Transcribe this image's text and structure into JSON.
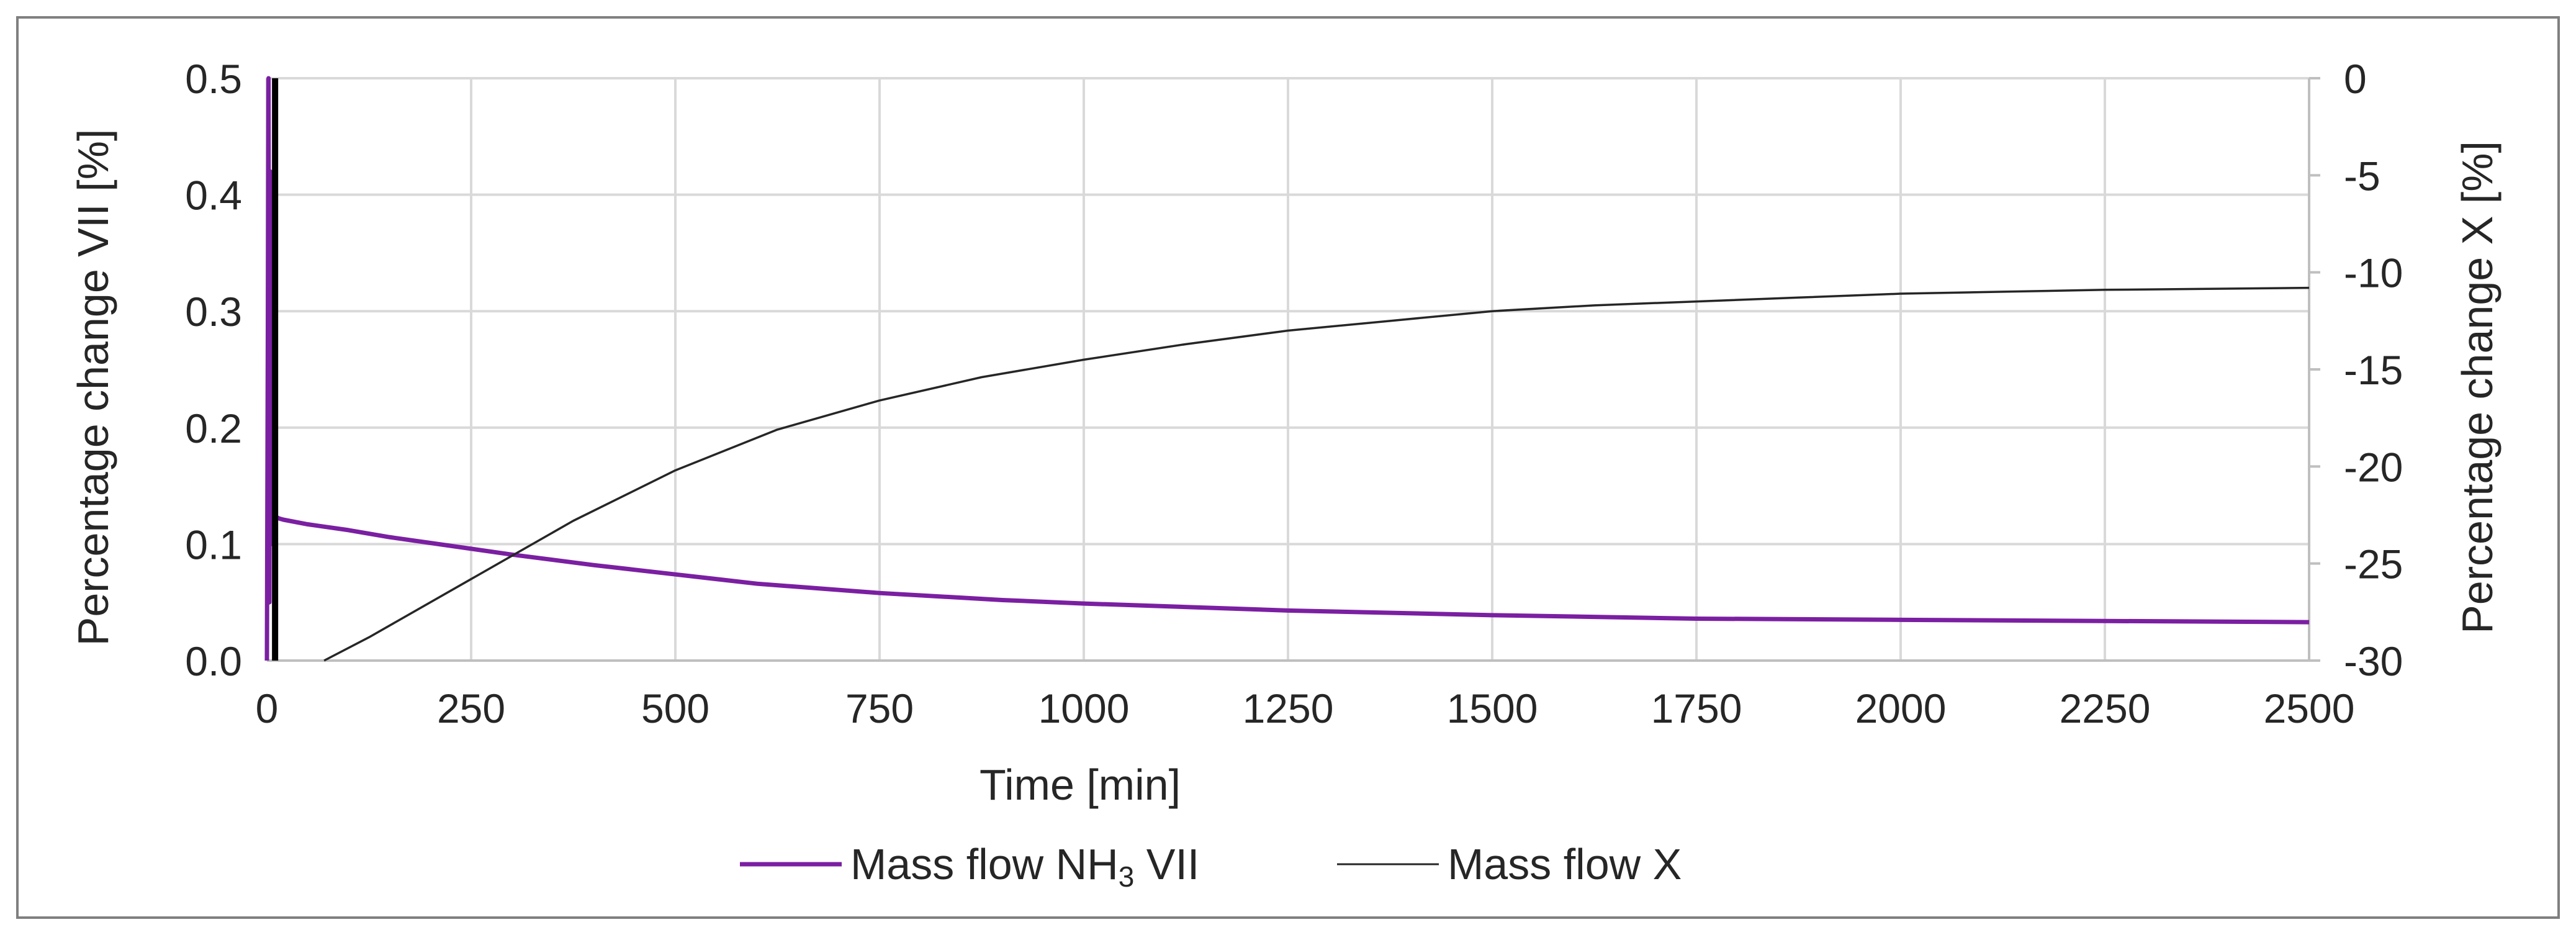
{
  "chart_data": {
    "type": "line",
    "title": "",
    "xlabel": "Time [min]",
    "ylabel_left": "Percentage change VII [%]",
    "ylabel_right": "Percentage change X [%]",
    "xlim": [
      0,
      2500
    ],
    "ylim_left": [
      0.0,
      0.5
    ],
    "ylim_right": [
      -30,
      0
    ],
    "x_ticks": [
      "0",
      "250",
      "500",
      "750",
      "1000",
      "1250",
      "1500",
      "1750",
      "2000",
      "2250",
      "2500"
    ],
    "y_left_ticks": [
      "0.0",
      "0.1",
      "0.2",
      "0.3",
      "0.4",
      "0.5"
    ],
    "y_right_ticks": [
      "0",
      "-5",
      "-10",
      "-15",
      "-20",
      "-25",
      "-30"
    ],
    "grid": true,
    "legend_position": "bottom",
    "series": [
      {
        "name_main": "Mass flow NH",
        "name_sub": "3",
        "name_suffix": " VII",
        "axis": "left",
        "color": "#7b1fa2",
        "x": [
          0,
          2,
          3,
          4,
          5,
          6,
          7,
          8,
          9,
          10,
          12,
          15,
          20,
          50,
          100,
          150,
          200,
          250,
          300,
          400,
          500,
          600,
          750,
          900,
          1000,
          1250,
          1500,
          1750,
          2000,
          2250,
          2500
        ],
        "values": [
          0.0,
          0.5,
          0.05,
          0.42,
          0.1,
          0.33,
          0.13,
          0.16,
          0.12,
          0.125,
          0.123,
          0.122,
          0.121,
          0.117,
          0.112,
          0.106,
          0.101,
          0.096,
          0.091,
          0.082,
          0.074,
          0.066,
          0.058,
          0.052,
          0.049,
          0.043,
          0.039,
          0.036,
          0.035,
          0.034,
          0.033
        ]
      },
      {
        "name": "Mass flow X",
        "axis": "right",
        "color": "#262626",
        "x": [
          70,
          125,
          250,
          375,
          500,
          625,
          750,
          875,
          1000,
          1125,
          1250,
          1375,
          1500,
          1625,
          1750,
          1875,
          2000,
          2125,
          2250,
          2375,
          2500
        ],
        "values": [
          -30,
          -28.8,
          -25.8,
          -22.8,
          -20.2,
          -18.1,
          -16.6,
          -15.4,
          -14.5,
          -13.7,
          -13.0,
          -12.5,
          -12.0,
          -11.7,
          -11.5,
          -11.3,
          -11.1,
          -11.0,
          -10.9,
          -10.85,
          -10.8
        ]
      }
    ],
    "marker_line": {
      "x": 10,
      "color": "#000000"
    }
  }
}
